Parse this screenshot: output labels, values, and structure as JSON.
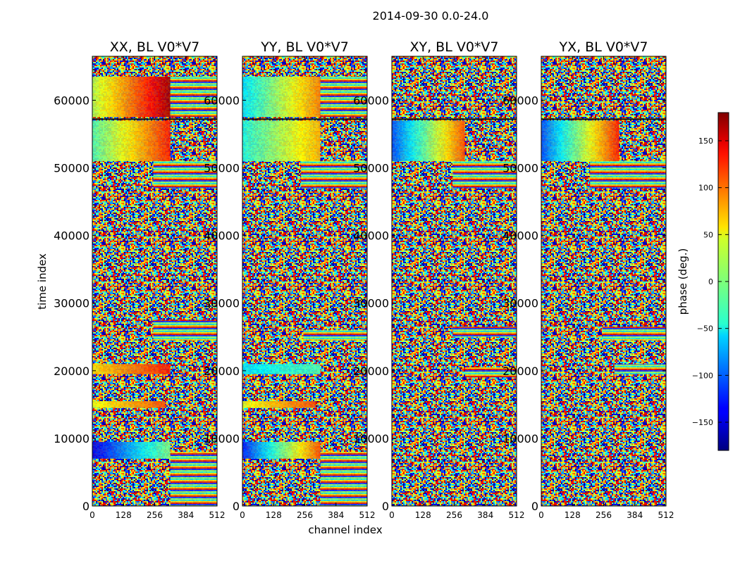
{
  "figure": {
    "suptitle": "2014-09-30 0.0-24.0",
    "xlabel": "channel index",
    "ylabel": "time index",
    "colorbar_label": "phase (deg.)"
  },
  "chart_data": {
    "type": "heatmap",
    "colormap": "jet",
    "vmin": -180,
    "vmax": 180,
    "xlim": [
      0,
      512
    ],
    "ylim": [
      0,
      66500
    ],
    "xticks": [
      0,
      128,
      256,
      384,
      512
    ],
    "yticks": [
      0,
      10000,
      20000,
      30000,
      40000,
      50000,
      60000
    ],
    "colorbar_ticks": [
      -150,
      -100,
      -50,
      0,
      50,
      100,
      150
    ],
    "colorbar_tick_labels": [
      "−150",
      "−100",
      "−50",
      "0",
      "50",
      "100",
      "150"
    ],
    "panels": [
      {
        "title": "XX, BL V0*V7"
      },
      {
        "title": "YY, BL V0*V7"
      },
      {
        "title": "XY, BL V0*V7"
      },
      {
        "title": "YX, BL V0*V7"
      }
    ]
  }
}
